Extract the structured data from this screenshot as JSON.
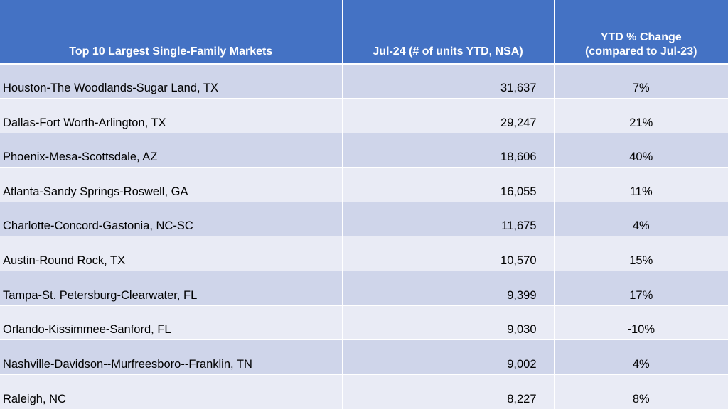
{
  "chart_data": {
    "type": "table",
    "columns": [
      "Top 10 Largest Single-Family Markets",
      "Jul-24 (# of units YTD, NSA)",
      [
        "YTD % Change",
        "(compared to Jul-23)"
      ]
    ],
    "rows": [
      {
        "market": "Houston-The Woodlands-Sugar Land, TX",
        "units": "31,637",
        "change": "7%"
      },
      {
        "market": "Dallas-Fort Worth-Arlington, TX",
        "units": "29,247",
        "change": "21%"
      },
      {
        "market": "Phoenix-Mesa-Scottsdale, AZ",
        "units": "18,606",
        "change": "40%"
      },
      {
        "market": "Atlanta-Sandy Springs-Roswell, GA",
        "units": "16,055",
        "change": "11%"
      },
      {
        "market": "Charlotte-Concord-Gastonia, NC-SC",
        "units": "11,675",
        "change": "4%"
      },
      {
        "market": "Austin-Round Rock, TX",
        "units": "10,570",
        "change": "15%"
      },
      {
        "market": "Tampa-St. Petersburg-Clearwater, FL",
        "units": "9,399",
        "change": "17%"
      },
      {
        "market": "Orlando-Kissimmee-Sanford, FL",
        "units": "9,030",
        "change": "-10%"
      },
      {
        "market": "Nashville-Davidson--Murfreesboro--Franklin, TN",
        "units": "9,002",
        "change": "4%"
      },
      {
        "market": "Raleigh, NC",
        "units": "8,227",
        "change": "8%"
      }
    ],
    "colors": {
      "header_bg": "#4472c4",
      "header_text": "#ffffff",
      "row_odd_bg": "#cfd5ea",
      "row_even_bg": "#e9ebf5"
    }
  }
}
